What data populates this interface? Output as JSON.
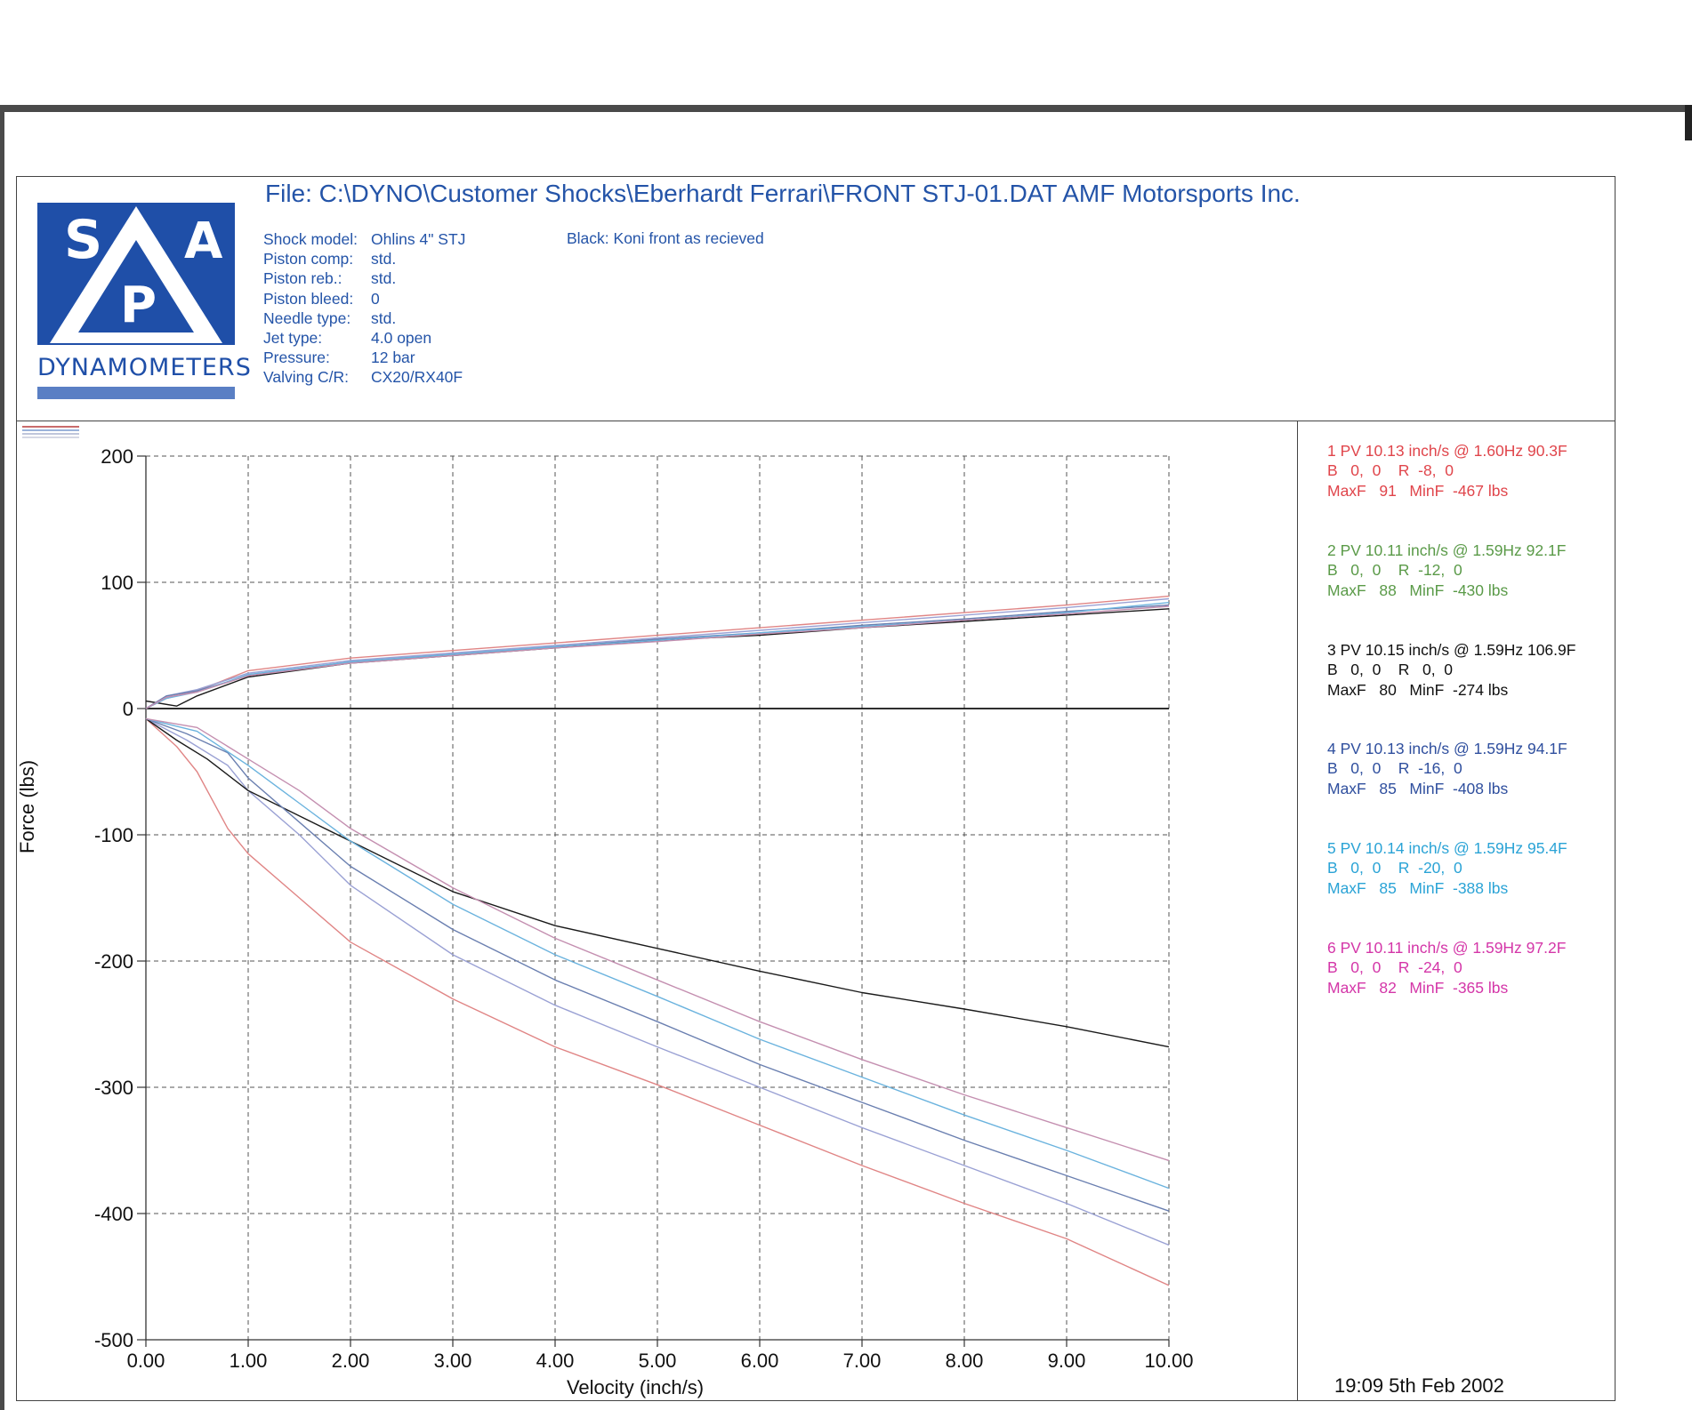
{
  "header": {
    "file_title": "File: C:\\DYNO\\Customer Shocks\\Eberhardt Ferrari\\FRONT STJ-01.DAT  AMF Motorsports Inc.",
    "note": "Black: Koni front as recieved",
    "logo_letters": [
      "S",
      "P",
      "A"
    ],
    "logo_text": "DYNAMOMETERS",
    "specs": [
      {
        "label": "Shock model:",
        "value": "Ohlins 4\" STJ"
      },
      {
        "label": "Piston comp:",
        "value": "std."
      },
      {
        "label": "Piston reb.:",
        "value": "std."
      },
      {
        "label": "Piston bleed:",
        "value": "0"
      },
      {
        "label": "Needle type:",
        "value": "std."
      },
      {
        "label": "Jet type:",
        "value": "4.0 open"
      },
      {
        "label": "Pressure:",
        "value": "12 bar"
      },
      {
        "label": "Valving C/R:",
        "value": "CX20/RX40F"
      }
    ],
    "timestamp": "19:09  5th Feb 2002"
  },
  "legend": [
    {
      "color": "#e0454b",
      "line1": "1 PV 10.13 inch/s @ 1.60Hz 90.3F",
      "line2": "B   0,  0    R  -8,  0",
      "line3": "MaxF   91   MinF  -467 lbs"
    },
    {
      "color": "#5a9a48",
      "line1": "2 PV 10.11 inch/s @ 1.59Hz 92.1F",
      "line2": "B   0,  0    R  -12,  0",
      "line3": "MaxF   88   MinF  -430 lbs"
    },
    {
      "color": "#111111",
      "line1": "3 PV 10.15 inch/s @ 1.59Hz 106.9F",
      "line2": "B   0,  0    R   0,  0",
      "line3": "MaxF   80   MinF  -274 lbs"
    },
    {
      "color": "#2f4f9e",
      "line1": "4 PV 10.13 inch/s @ 1.59Hz 94.1F",
      "line2": "B   0,  0    R  -16,  0",
      "line3": "MaxF   85   MinF  -408 lbs"
    },
    {
      "color": "#2aa3d6",
      "line1": "5 PV 10.14 inch/s @ 1.59Hz 95.4F",
      "line2": "B   0,  0    R  -20,  0",
      "line3": "MaxF   85   MinF  -388 lbs"
    },
    {
      "color": "#d436a8",
      "line1": "6 PV 10.11 inch/s @ 1.59Hz 97.2F",
      "line2": "B   0,  0    R  -24,  0",
      "line3": "MaxF   82   MinF  -365 lbs"
    }
  ],
  "chart_data": {
    "type": "line",
    "xlabel": "Velocity (inch/s)",
    "ylabel": "Force (lbs)",
    "xlim": [
      0,
      10
    ],
    "ylim": [
      -500,
      200
    ],
    "xticks": [
      "0.00",
      "1.00",
      "2.00",
      "3.00",
      "4.00",
      "5.00",
      "6.00",
      "7.00",
      "8.00",
      "9.00",
      "10.00"
    ],
    "yticks": [
      "200",
      "100",
      "0",
      "-100",
      "-200",
      "-300",
      "-400",
      "-500"
    ],
    "grid": true,
    "series": [
      {
        "color": "#e08585",
        "compression": [
          [
            0,
            0
          ],
          [
            0.2,
            8
          ],
          [
            0.5,
            14
          ],
          [
            1,
            30
          ],
          [
            2,
            40
          ],
          [
            3,
            46
          ],
          [
            4,
            52
          ],
          [
            5,
            58
          ],
          [
            6,
            64
          ],
          [
            7,
            70
          ],
          [
            8,
            76
          ],
          [
            9,
            82
          ],
          [
            10,
            89
          ]
        ],
        "rebound": [
          [
            0,
            -8
          ],
          [
            0.3,
            -30
          ],
          [
            0.5,
            -50
          ],
          [
            0.8,
            -95
          ],
          [
            1,
            -115
          ],
          [
            1.5,
            -150
          ],
          [
            2,
            -185
          ],
          [
            3,
            -230
          ],
          [
            4,
            -268
          ],
          [
            5,
            -298
          ],
          [
            6,
            -330
          ],
          [
            7,
            -362
          ],
          [
            8,
            -392
          ],
          [
            9,
            -420
          ],
          [
            10,
            -457
          ]
        ]
      },
      {
        "color": "#9aa1d4",
        "compression": [
          [
            0,
            0
          ],
          [
            0.2,
            10
          ],
          [
            0.5,
            15
          ],
          [
            1,
            28
          ],
          [
            2,
            38
          ],
          [
            3,
            44
          ],
          [
            4,
            50
          ],
          [
            5,
            56
          ],
          [
            6,
            62
          ],
          [
            7,
            68
          ],
          [
            8,
            74
          ],
          [
            9,
            80
          ],
          [
            10,
            87
          ]
        ],
        "rebound": [
          [
            0,
            -8
          ],
          [
            0.4,
            -25
          ],
          [
            0.8,
            -45
          ],
          [
            1,
            -65
          ],
          [
            1.5,
            -100
          ],
          [
            2,
            -140
          ],
          [
            3,
            -195
          ],
          [
            4,
            -235
          ],
          [
            5,
            -268
          ],
          [
            6,
            -300
          ],
          [
            7,
            -332
          ],
          [
            8,
            -362
          ],
          [
            9,
            -392
          ],
          [
            10,
            -425
          ]
        ]
      },
      {
        "color": "#1a1a1a",
        "compression": [
          [
            0,
            6
          ],
          [
            0.3,
            2
          ],
          [
            0.5,
            10
          ],
          [
            1,
            25
          ],
          [
            2,
            36
          ],
          [
            3,
            42
          ],
          [
            4,
            48
          ],
          [
            5,
            54
          ],
          [
            6,
            58
          ],
          [
            7,
            64
          ],
          [
            8,
            69
          ],
          [
            9,
            74
          ],
          [
            10,
            79
          ]
        ],
        "rebound": [
          [
            0,
            -8
          ],
          [
            0.3,
            -25
          ],
          [
            0.6,
            -40
          ],
          [
            1,
            -65
          ],
          [
            1.5,
            -85
          ],
          [
            2,
            -105
          ],
          [
            3,
            -145
          ],
          [
            4,
            -172
          ],
          [
            5,
            -190
          ],
          [
            6,
            -208
          ],
          [
            7,
            -225
          ],
          [
            8,
            -238
          ],
          [
            9,
            -252
          ],
          [
            10,
            -268
          ]
        ]
      },
      {
        "color": "#6a7fb0",
        "compression": [
          [
            0,
            0
          ],
          [
            0.2,
            10
          ],
          [
            0.5,
            14
          ],
          [
            1,
            26
          ],
          [
            2,
            37
          ],
          [
            3,
            43
          ],
          [
            4,
            49
          ],
          [
            5,
            55
          ],
          [
            6,
            60
          ],
          [
            7,
            66
          ],
          [
            8,
            71
          ],
          [
            9,
            77
          ],
          [
            10,
            82
          ]
        ],
        "rebound": [
          [
            0,
            -8
          ],
          [
            0.4,
            -20
          ],
          [
            0.8,
            -35
          ],
          [
            1,
            -55
          ],
          [
            1.5,
            -90
          ],
          [
            2,
            -125
          ],
          [
            3,
            -175
          ],
          [
            4,
            -215
          ],
          [
            5,
            -248
          ],
          [
            6,
            -282
          ],
          [
            7,
            -312
          ],
          [
            8,
            -342
          ],
          [
            9,
            -370
          ],
          [
            10,
            -398
          ]
        ]
      },
      {
        "color": "#6bb3de",
        "compression": [
          [
            0,
            0
          ],
          [
            0.2,
            8
          ],
          [
            0.5,
            13
          ],
          [
            1,
            27
          ],
          [
            2,
            37
          ],
          [
            3,
            43
          ],
          [
            4,
            49
          ],
          [
            5,
            54
          ],
          [
            6,
            60
          ],
          [
            7,
            65
          ],
          [
            8,
            70
          ],
          [
            9,
            76
          ],
          [
            10,
            84
          ]
        ],
        "rebound": [
          [
            0,
            -8
          ],
          [
            0.5,
            -18
          ],
          [
            1,
            -45
          ],
          [
            1.5,
            -75
          ],
          [
            2,
            -105
          ],
          [
            3,
            -155
          ],
          [
            4,
            -195
          ],
          [
            5,
            -228
          ],
          [
            6,
            -262
          ],
          [
            7,
            -292
          ],
          [
            8,
            -322
          ],
          [
            9,
            -350
          ],
          [
            10,
            -380
          ]
        ]
      },
      {
        "color": "#c48fb0",
        "compression": [
          [
            0,
            0
          ],
          [
            0.2,
            9
          ],
          [
            0.5,
            13
          ],
          [
            1,
            26
          ],
          [
            2,
            36
          ],
          [
            3,
            42
          ],
          [
            4,
            48
          ],
          [
            5,
            53
          ],
          [
            6,
            59
          ],
          [
            7,
            64
          ],
          [
            8,
            70
          ],
          [
            9,
            75
          ],
          [
            10,
            81
          ]
        ],
        "rebound": [
          [
            0,
            -8
          ],
          [
            0.5,
            -15
          ],
          [
            1,
            -40
          ],
          [
            1.5,
            -65
          ],
          [
            2,
            -95
          ],
          [
            3,
            -142
          ],
          [
            4,
            -182
          ],
          [
            5,
            -215
          ],
          [
            6,
            -248
          ],
          [
            7,
            -278
          ],
          [
            8,
            -306
          ],
          [
            9,
            -332
          ],
          [
            10,
            -358
          ]
        ]
      }
    ]
  }
}
